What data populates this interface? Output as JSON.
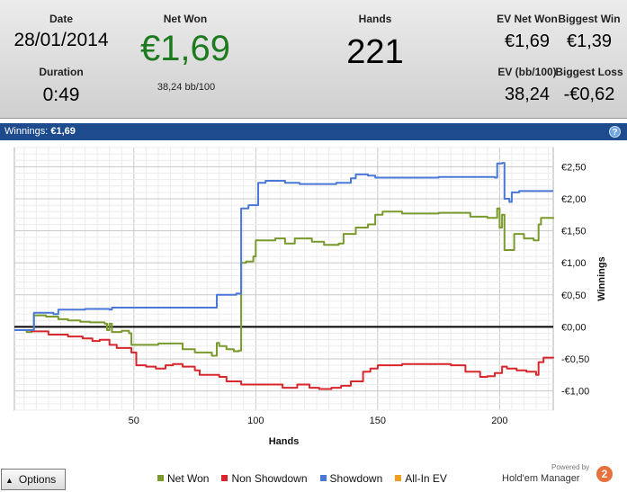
{
  "summary": {
    "date_label": "Date",
    "date_value": "28/01/2014",
    "duration_label": "Duration",
    "duration_value": "0:49",
    "net_won_label": "Net Won",
    "net_won_value": "€1,69",
    "net_won_bb": "38,24 bb/100",
    "hands_label": "Hands",
    "hands_value": "221",
    "ev_net_won_label": "EV Net Won",
    "ev_net_won_value": "€1,69",
    "biggest_win_label": "Biggest Win",
    "biggest_win_value": "€1,39",
    "ev_bb_label": "EV (bb/100)",
    "ev_bb_value": "38,24",
    "biggest_loss_label": "Biggest Loss",
    "biggest_loss_value": "-€0,62",
    "net_won_color": "#1e7a1e"
  },
  "titlebar": {
    "text": "Winnings: ",
    "value": "€1,69",
    "help": "?"
  },
  "chart_data": {
    "type": "line",
    "xlabel": "Hands",
    "ylabel": "Winnings",
    "xlim": [
      1,
      222
    ],
    "ylim": [
      -1.3,
      2.8
    ],
    "x_ticks": [
      50,
      100,
      150,
      200
    ],
    "y_ticks": [
      2.5,
      2.0,
      1.5,
      1.0,
      0.5,
      0.0,
      -0.5,
      -1.0
    ],
    "y_tick_labels": [
      "€2,50",
      "€2,00",
      "€1,50",
      "€1,00",
      "€0,50",
      "€0,00",
      "-€0,50",
      "-€1,00"
    ],
    "grid": true,
    "series": [
      {
        "name": "Net Won",
        "color": "#7a9a2e",
        "points": [
          [
            1,
            -0.05
          ],
          [
            6,
            -0.08
          ],
          [
            8,
            -0.05
          ],
          [
            9,
            0.18
          ],
          [
            14,
            0.16
          ],
          [
            19,
            0.12
          ],
          [
            23,
            0.1
          ],
          [
            28,
            0.08
          ],
          [
            32,
            0.07
          ],
          [
            38,
            0.05
          ],
          [
            39,
            -0.05
          ],
          [
            40,
            0.05
          ],
          [
            41,
            -0.08
          ],
          [
            45,
            -0.06
          ],
          [
            48,
            -0.1
          ],
          [
            49,
            -0.28
          ],
          [
            60,
            -0.26
          ],
          [
            70,
            -0.35
          ],
          [
            75,
            -0.4
          ],
          [
            82,
            -0.45
          ],
          [
            84,
            -0.25
          ],
          [
            85,
            -0.3
          ],
          [
            88,
            -0.35
          ],
          [
            91,
            -0.38
          ],
          [
            93,
            -0.37
          ],
          [
            94,
            1.0
          ],
          [
            96,
            1.02
          ],
          [
            99,
            1.1
          ],
          [
            100,
            1.35
          ],
          [
            108,
            1.38
          ],
          [
            112,
            1.3
          ],
          [
            116,
            1.38
          ],
          [
            123,
            1.33
          ],
          [
            128,
            1.28
          ],
          [
            134,
            1.3
          ],
          [
            136,
            1.45
          ],
          [
            140,
            1.45
          ],
          [
            141,
            1.55
          ],
          [
            146,
            1.6
          ],
          [
            149,
            1.75
          ],
          [
            152,
            1.8
          ],
          [
            160,
            1.77
          ],
          [
            175,
            1.78
          ],
          [
            188,
            1.72
          ],
          [
            195,
            1.7
          ],
          [
            199,
            1.85
          ],
          [
            200,
            1.55
          ],
          [
            201,
            1.75
          ],
          [
            202,
            1.2
          ],
          [
            205,
            1.2
          ],
          [
            206,
            1.45
          ],
          [
            210,
            1.38
          ],
          [
            214,
            1.35
          ],
          [
            216,
            1.6
          ],
          [
            217,
            1.7
          ],
          [
            222,
            1.69
          ]
        ]
      },
      {
        "name": "Non Showdown",
        "color": "#d9262c",
        "points": [
          [
            1,
            -0.05
          ],
          [
            8,
            -0.07
          ],
          [
            15,
            -0.12
          ],
          [
            23,
            -0.15
          ],
          [
            29,
            -0.18
          ],
          [
            33,
            -0.22
          ],
          [
            36,
            -0.2
          ],
          [
            40,
            -0.28
          ],
          [
            43,
            -0.33
          ],
          [
            49,
            -0.4
          ],
          [
            51,
            -0.6
          ],
          [
            55,
            -0.62
          ],
          [
            59,
            -0.65
          ],
          [
            63,
            -0.6
          ],
          [
            66,
            -0.58
          ],
          [
            70,
            -0.62
          ],
          [
            75,
            -0.68
          ],
          [
            77,
            -0.75
          ],
          [
            85,
            -0.78
          ],
          [
            88,
            -0.85
          ],
          [
            94,
            -0.9
          ],
          [
            105,
            -0.9
          ],
          [
            111,
            -0.95
          ],
          [
            117,
            -0.9
          ],
          [
            122,
            -0.95
          ],
          [
            126,
            -0.97
          ],
          [
            131,
            -0.95
          ],
          [
            135,
            -0.92
          ],
          [
            139,
            -0.85
          ],
          [
            144,
            -0.7
          ],
          [
            147,
            -0.65
          ],
          [
            150,
            -0.6
          ],
          [
            160,
            -0.58
          ],
          [
            180,
            -0.6
          ],
          [
            186,
            -0.7
          ],
          [
            192,
            -0.78
          ],
          [
            195,
            -0.77
          ],
          [
            198,
            -0.72
          ],
          [
            201,
            -0.62
          ],
          [
            203,
            -0.65
          ],
          [
            207,
            -0.68
          ],
          [
            211,
            -0.7
          ],
          [
            215,
            -0.75
          ],
          [
            216,
            -0.55
          ],
          [
            218,
            -0.48
          ],
          [
            222,
            -0.47
          ]
        ]
      },
      {
        "name": "Showdown",
        "color": "#4a78d8",
        "points": [
          [
            1,
            -0.05
          ],
          [
            8,
            -0.05
          ],
          [
            9,
            0.22
          ],
          [
            12,
            0.22
          ],
          [
            17,
            0.2
          ],
          [
            19,
            0.27
          ],
          [
            30,
            0.28
          ],
          [
            40,
            0.27
          ],
          [
            41,
            0.3
          ],
          [
            80,
            0.3
          ],
          [
            84,
            0.5
          ],
          [
            92,
            0.52
          ],
          [
            94,
            1.85
          ],
          [
            97,
            1.9
          ],
          [
            101,
            2.25
          ],
          [
            104,
            2.28
          ],
          [
            112,
            2.25
          ],
          [
            118,
            2.23
          ],
          [
            133,
            2.25
          ],
          [
            139,
            2.32
          ],
          [
            141,
            2.38
          ],
          [
            146,
            2.36
          ],
          [
            149,
            2.33
          ],
          [
            175,
            2.34
          ],
          [
            198,
            2.33
          ],
          [
            199,
            2.55
          ],
          [
            201,
            2.56
          ],
          [
            202,
            2.0
          ],
          [
            204,
            1.95
          ],
          [
            205,
            2.1
          ],
          [
            208,
            2.12
          ],
          [
            222,
            2.12
          ]
        ]
      }
    ],
    "legend": [
      "Net Won",
      "Non Showdown",
      "Showdown",
      "All-In EV"
    ],
    "legend_colors": [
      "#7a9a2e",
      "#d9262c",
      "#4a78d8",
      "#f0a020"
    ],
    "legend_position": "bottom"
  },
  "footer": {
    "options_label": "Options",
    "powered_by": "Powered by",
    "logo_text": "Hold'em Manager",
    "logo_badge": "2"
  }
}
